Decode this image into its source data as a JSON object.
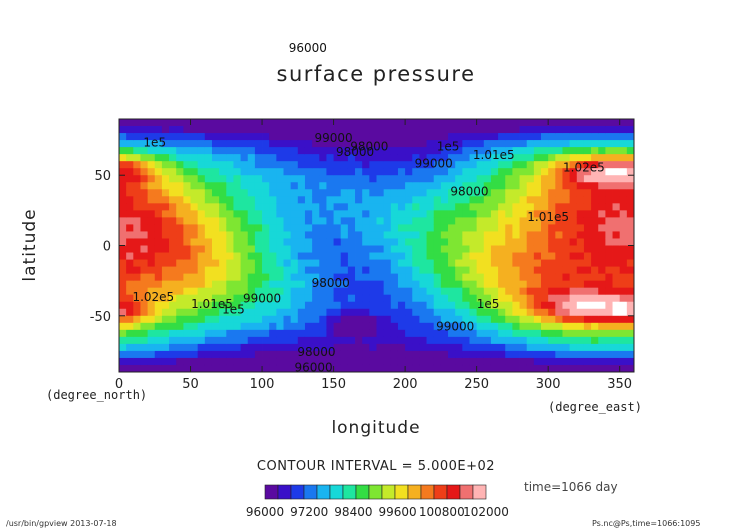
{
  "chart_data": {
    "type": "heatmap",
    "title": "surface pressure",
    "xlabel": "longitude",
    "ylabel": "latitude",
    "x_unit_left": "(degree_north)",
    "x_unit_right": "(degree_east)",
    "xlim": [
      0,
      360
    ],
    "ylim": [
      -90,
      90
    ],
    "x_ticks": [
      "0",
      "50",
      "100",
      "150",
      "200",
      "250",
      "300",
      "350"
    ],
    "y_ticks": [
      "50",
      "0",
      "-50"
    ],
    "colorbar_ticks": [
      "96000",
      "97200",
      "98400",
      "99600",
      "100800",
      "102000"
    ],
    "colorbar_range": [
      96000,
      102000
    ],
    "contour_labels": [
      "96000",
      "98000",
      "99000",
      "1e5",
      "1.01e5",
      "1.02e5"
    ],
    "contour_interval_text": "CONTOUR INTERVAL = 5.000E+02",
    "time_text": "time=1066 day"
  },
  "footer": {
    "left": "/usr/bin/gpview  2013-07-18",
    "right": "Ps.nc@Ps,time=1066:1095"
  },
  "colors": {
    "low": "#6600aa",
    "mid": "#33dd33",
    "high": "#ee1111",
    "very_high": "#ffb0b0",
    "blank": "#ffffff"
  }
}
